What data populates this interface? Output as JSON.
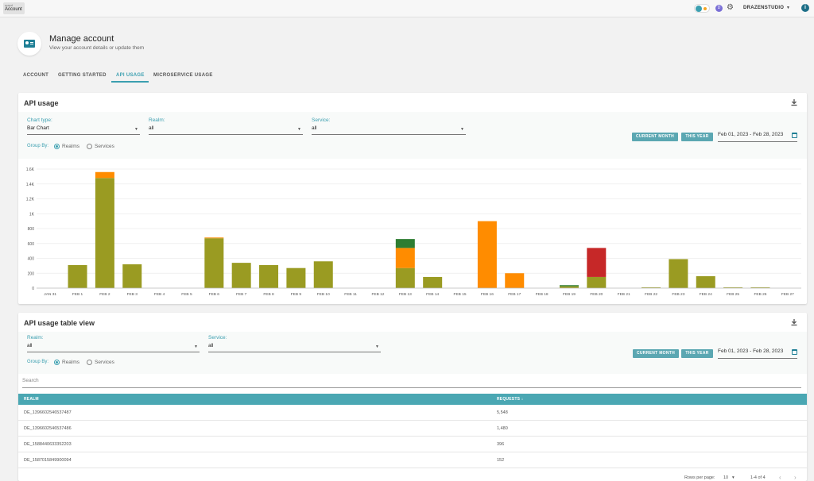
{
  "topbar": {
    "app_small": "mapd",
    "app_label": "Account",
    "avatar_letter": "D",
    "username": "DRAZENSTUDIO",
    "info": "i"
  },
  "header": {
    "title": "Manage account",
    "subtitle": "View your account details or update them"
  },
  "tabs": [
    "ACCOUNT",
    "GETTING STARTED",
    "API USAGE",
    "MICROSERVICE USAGE"
  ],
  "api_usage": {
    "title": "API usage",
    "chart_type_label": "Chart type:",
    "chart_type_value": "Bar Chart",
    "realm_label": "Realm:",
    "realm_value": "all",
    "service_label": "Service:",
    "service_value": "all",
    "group_by_label": "Group By:",
    "group_options": [
      "Realms",
      "Services"
    ],
    "current_month": "CURRENT MONTH",
    "this_year": "THIS YEAR",
    "date_range": "Feb 01, 2023 - Feb 28, 2023"
  },
  "chart_data": {
    "type": "bar",
    "stacked": true,
    "categories": [
      "JAN 31",
      "FEB 1",
      "FEB 2",
      "FEB 3",
      "FEB 4",
      "FEB 5",
      "FEB 6",
      "FEB 7",
      "FEB 8",
      "FEB 9",
      "FEB 10",
      "FEB 11",
      "FEB 12",
      "FEB 13",
      "FEB 14",
      "FEB 15",
      "FEB 16",
      "FEB 17",
      "FEB 18",
      "FEB 19",
      "FEB 20",
      "FEB 21",
      "FEB 22",
      "FEB 23",
      "FEB 24",
      "FEB 25",
      "FEB 26",
      "FEB 27"
    ],
    "y_ticks": [
      "0",
      "200",
      "400",
      "600",
      "800",
      "1K",
      "1.2K",
      "1.4K",
      "1.6K"
    ],
    "ylim": [
      0,
      1600
    ],
    "grid": true,
    "series": [
      {
        "color": "#9a9b22",
        "values": [
          0,
          310,
          1480,
          320,
          0,
          0,
          670,
          340,
          310,
          270,
          360,
          0,
          0,
          270,
          150,
          0,
          0,
          0,
          0,
          25,
          150,
          0,
          10,
          390,
          160,
          10,
          10,
          0
        ]
      },
      {
        "color": "#ff8c00",
        "values": [
          0,
          0,
          80,
          0,
          0,
          0,
          10,
          0,
          0,
          0,
          0,
          0,
          0,
          270,
          0,
          0,
          900,
          200,
          0,
          0,
          0,
          0,
          0,
          0,
          0,
          0,
          0,
          0
        ]
      },
      {
        "color": "#2e7d32",
        "values": [
          0,
          0,
          0,
          0,
          0,
          0,
          0,
          0,
          0,
          0,
          0,
          0,
          0,
          120,
          0,
          0,
          0,
          0,
          0,
          15,
          0,
          0,
          0,
          0,
          0,
          0,
          0,
          0
        ]
      },
      {
        "color": "#c62828",
        "values": [
          0,
          0,
          0,
          0,
          0,
          0,
          0,
          0,
          0,
          0,
          0,
          0,
          0,
          0,
          0,
          0,
          0,
          0,
          0,
          0,
          390,
          0,
          0,
          0,
          0,
          0,
          0,
          0
        ]
      }
    ]
  },
  "table_view": {
    "title": "API usage table view",
    "realm_label": "Realm:",
    "realm_value": "all",
    "service_label": "Service:",
    "service_value": "all",
    "group_by_label": "Group By:",
    "group_options": [
      "Realms",
      "Services"
    ],
    "current_month": "CURRENT MONTH",
    "this_year": "THIS YEAR",
    "date_range": "Feb 01, 2023 - Feb 28, 2023",
    "search_placeholder": "Search",
    "columns": [
      "REALM",
      "REQUESTS ↓"
    ],
    "rows": [
      {
        "realm": "DE_1396602546537487",
        "requests": "5,548"
      },
      {
        "realm": "DE_1396602546537486",
        "requests": "1,480"
      },
      {
        "realm": "DE_1588440633352203",
        "requests": "396"
      },
      {
        "realm": "DE_1587015849900094",
        "requests": "152"
      }
    ],
    "rows_per_page_label": "Rows per page:",
    "rows_per_page_value": "10",
    "page_range": "1-4 of 4"
  },
  "colors": {
    "accent": "#3b9fb0",
    "header_bg": "#4aa7b3",
    "button_bg": "#5ba7b2"
  }
}
